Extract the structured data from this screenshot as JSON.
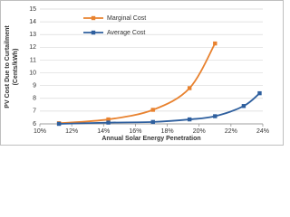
{
  "chart_data": {
    "type": "line",
    "ylabel": [
      "PV Cost Due to Curtailment",
      "(Cents/kWh)"
    ],
    "xlabel": "Annual Solar Energy Penetration",
    "series": [
      {
        "name": "Marginal Cost",
        "color": "#e8822f",
        "x": [
          11.2,
          14.3,
          17.1,
          19.4,
          21.0
        ],
        "values": [
          6.05,
          6.35,
          7.1,
          8.8,
          12.3
        ]
      },
      {
        "name": "Average Cost",
        "color": "#2e5f9e",
        "x": [
          11.2,
          14.3,
          17.1,
          19.4,
          21.0,
          22.8,
          23.8
        ],
        "values": [
          6.0,
          6.1,
          6.15,
          6.35,
          6.6,
          7.4,
          8.4
        ]
      }
    ],
    "xlim": [
      10,
      24
    ],
    "xticks": [
      {
        "value": 10,
        "label": "10%"
      },
      {
        "value": 12,
        "label": "12%"
      },
      {
        "value": 14,
        "label": "14%"
      },
      {
        "value": 16,
        "label": "16%"
      },
      {
        "value": 18,
        "label": "18%"
      },
      {
        "value": 20,
        "label": "20%"
      },
      {
        "value": 22,
        "label": "22%"
      },
      {
        "value": 24,
        "label": "24%"
      }
    ],
    "ylim": [
      6,
      15
    ],
    "yticks": [
      6,
      7,
      8,
      9,
      10,
      11,
      12,
      13,
      14,
      15
    ],
    "grid": true
  }
}
